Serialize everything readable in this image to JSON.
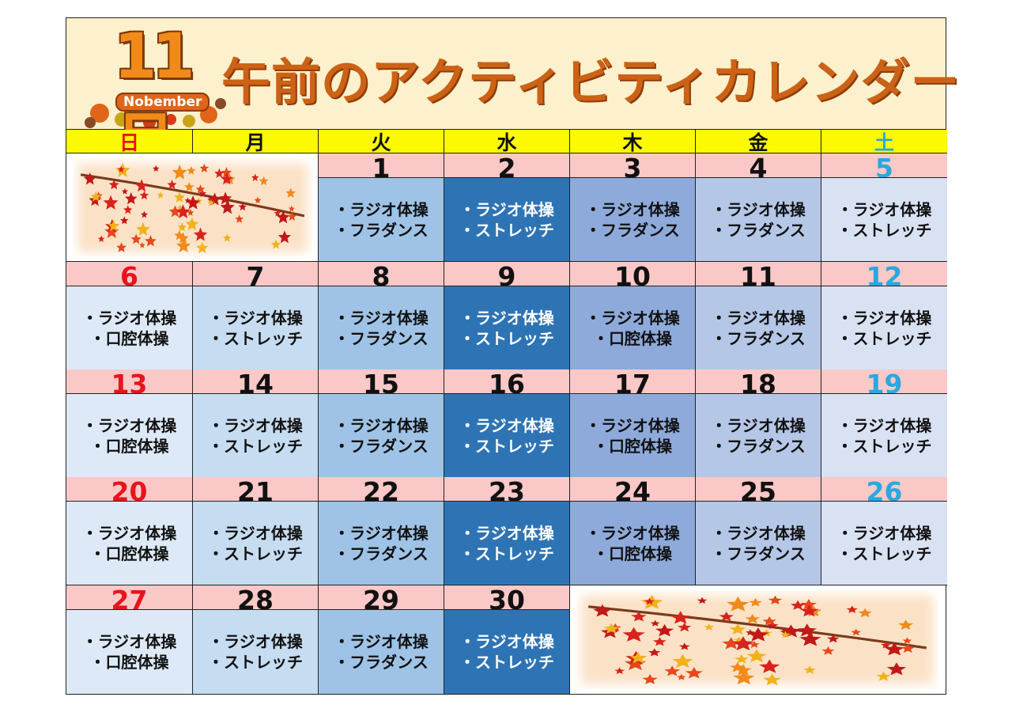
{
  "header": {
    "month_number": "11月",
    "month_label": "Nobember",
    "title": "午前のアクティビティカレンダー"
  },
  "weekdays": [
    {
      "label": "日",
      "color": "#e8141b"
    },
    {
      "label": "月",
      "color": "#111111"
    },
    {
      "label": "火",
      "color": "#111111"
    },
    {
      "label": "水",
      "color": "#111111"
    },
    {
      "label": "木",
      "color": "#111111"
    },
    {
      "label": "金",
      "color": "#111111"
    },
    {
      "label": "土",
      "color": "#29a8e0"
    }
  ],
  "colors": {
    "header_bg": "#fdf0cc",
    "weekday_bg": "#fdfa00",
    "date_bg": "#fbc8c8",
    "sunday": "#e8141b",
    "saturday": "#29a8e0",
    "title": "#cc6215",
    "col_bg": [
      "#dde9f6",
      "#c6dcf0",
      "#9ec3e6",
      "#2e74b5",
      "#8eaadb",
      "#b4c7e7",
      "#d9e2f3"
    ]
  },
  "weeks": [
    [
      null,
      null,
      {
        "date": "1",
        "activities": [
          "・ラジオ体操",
          "・フラダンス"
        ]
      },
      {
        "date": "2",
        "activities": [
          "・ラジオ体操",
          "・ストレッチ"
        ]
      },
      {
        "date": "3",
        "activities": [
          "・ラジオ体操",
          "・フラダンス"
        ]
      },
      {
        "date": "4",
        "activities": [
          "・ラジオ体操",
          "・フラダンス"
        ]
      },
      {
        "date": "5",
        "activities": [
          "・ラジオ体操",
          "・ストレッチ"
        ]
      }
    ],
    [
      {
        "date": "6",
        "activities": [
          "・ラジオ体操",
          "・口腔体操"
        ]
      },
      {
        "date": "7",
        "activities": [
          "・ラジオ体操",
          "・ストレッチ"
        ]
      },
      {
        "date": "8",
        "activities": [
          "・ラジオ体操",
          "・フラダンス"
        ]
      },
      {
        "date": "9",
        "activities": [
          "・ラジオ体操",
          "・ストレッチ"
        ]
      },
      {
        "date": "10",
        "activities": [
          "・ラジオ体操",
          "・口腔体操"
        ]
      },
      {
        "date": "11",
        "activities": [
          "・ラジオ体操",
          "・フラダンス"
        ]
      },
      {
        "date": "12",
        "activities": [
          "・ラジオ体操",
          "・ストレッチ"
        ]
      }
    ],
    [
      {
        "date": "13",
        "activities": [
          "・ラジオ体操",
          "・口腔体操"
        ]
      },
      {
        "date": "14",
        "activities": [
          "・ラジオ体操",
          "・ストレッチ"
        ]
      },
      {
        "date": "15",
        "activities": [
          "・ラジオ体操",
          "・フラダンス"
        ]
      },
      {
        "date": "16",
        "activities": [
          "・ラジオ体操",
          "・ストレッチ"
        ]
      },
      {
        "date": "17",
        "activities": [
          "・ラジオ体操",
          "・口腔体操"
        ]
      },
      {
        "date": "18",
        "activities": [
          "・ラジオ体操",
          "・フラダンス"
        ]
      },
      {
        "date": "19",
        "activities": [
          "・ラジオ体操",
          "・ストレッチ"
        ]
      }
    ],
    [
      {
        "date": "20",
        "activities": [
          "・ラジオ体操",
          "・口腔体操"
        ]
      },
      {
        "date": "21",
        "activities": [
          "・ラジオ体操",
          "・ストレッチ"
        ]
      },
      {
        "date": "22",
        "activities": [
          "・ラジオ体操",
          "・フラダンス"
        ]
      },
      {
        "date": "23",
        "activities": [
          "・ラジオ体操",
          "・ストレッチ"
        ]
      },
      {
        "date": "24",
        "activities": [
          "・ラジオ体操",
          "・口腔体操"
        ]
      },
      {
        "date": "25",
        "activities": [
          "・ラジオ体操",
          "・フラダンス"
        ]
      },
      {
        "date": "26",
        "activities": [
          "・ラジオ体操",
          "・ストレッチ"
        ]
      }
    ],
    [
      {
        "date": "27",
        "activities": [
          "・ラジオ体操",
          "・口腔体操"
        ]
      },
      {
        "date": "28",
        "activities": [
          "・ラジオ体操",
          "・ストレッチ"
        ]
      },
      {
        "date": "29",
        "activities": [
          "・ラジオ体操",
          "・フラダンス"
        ]
      },
      {
        "date": "30",
        "activities": [
          "・ラジオ体操",
          "・ストレッチ"
        ]
      },
      null,
      null,
      null
    ]
  ]
}
